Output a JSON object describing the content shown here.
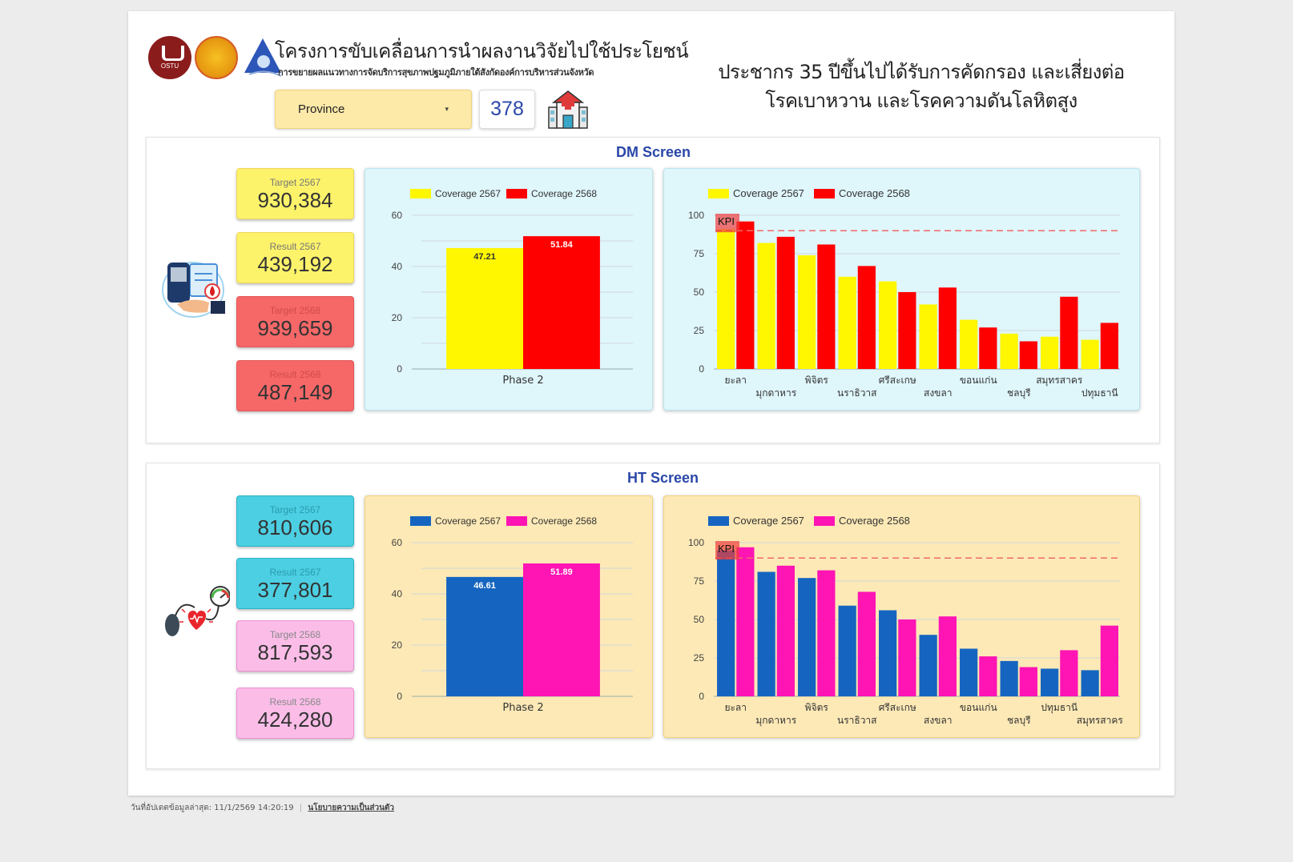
{
  "header": {
    "project_title": "โครงการขับเคลื่อนการนำผลงานวิจัยไปใช้ประโยชน์",
    "project_subtitle": "การขยายผลแนวทางการจัดบริการสุขภาพปฐมภูมิภายใต้สังกัดองค์การบริหารส่วนจังหวัด",
    "main_title_line1": "ประชากร 35 ปีขึ้นไปได้รับการคัดกรอง และเสี่ยงต่อ",
    "main_title_line2": "โรคเบาหวาน และโรคความดันโลหิตสูง",
    "province_select": {
      "value": "Province",
      "caret": "▾"
    },
    "facility_count": "378",
    "logos": [
      "ostu-logo",
      "seal-logo",
      "triangle-logo"
    ],
    "hospital_icon": "hospital-icon"
  },
  "sections": {
    "dm": {
      "title": "DM Screen",
      "icon": "glucose-meter-icon",
      "kpis": [
        {
          "label": "Target 2567",
          "value": "930,384",
          "style": "yellow"
        },
        {
          "label": "Result 2567",
          "value": "439,192",
          "style": "yellow"
        },
        {
          "label": "Target 2568",
          "value": "939,659",
          "style": "red"
        },
        {
          "label": "Result 2568",
          "value": "487,149",
          "style": "red"
        }
      ]
    },
    "ht": {
      "title": "HT Screen",
      "icon": "blood-pressure-icon",
      "kpis": [
        {
          "label": "Target 2567",
          "value": "810,606",
          "style": "cyan"
        },
        {
          "label": "Result 2567",
          "value": "377,801",
          "style": "cyan"
        },
        {
          "label": "Target 2568",
          "value": "817,593",
          "style": "pink"
        },
        {
          "label": "Result 2568",
          "value": "424,280",
          "style": "pink"
        }
      ]
    }
  },
  "footer": {
    "updated_text": "วันที่อัปเดตข้อมูลล่าสุด: 11/1/2569 14:20:19",
    "separator": "|",
    "privacy_link": "นโยบายความเป็นส่วนตัว"
  },
  "chart_data": [
    {
      "id": "dm-phase",
      "type": "bar",
      "title": "",
      "categories": [
        "Phase 2"
      ],
      "series": [
        {
          "name": "Coverage 2567",
          "values": [
            47.21
          ],
          "color": "#fff700"
        },
        {
          "name": "Coverage 2568",
          "values": [
            51.84
          ],
          "color": "#ff0000"
        }
      ],
      "data_labels": [
        "47.21",
        "51.84"
      ],
      "ylim": [
        0,
        60
      ],
      "yticks": [
        0,
        20,
        40,
        60
      ],
      "grid": true,
      "legend_position": "top"
    },
    {
      "id": "dm-province",
      "type": "bar",
      "title": "",
      "categories": [
        "ยะลา",
        "มุกดาหาร",
        "พิจิตร",
        "นราธิวาส",
        "ศรีสะเกษ",
        "สงขลา",
        "ขอนแก่น",
        "ชลบุรี",
        "สมุทรสาคร",
        "ปทุมธานี"
      ],
      "series": [
        {
          "name": "Coverage 2567",
          "values": [
            91,
            82,
            74,
            60,
            57,
            42,
            32,
            23,
            21,
            19
          ],
          "color": "#fff700"
        },
        {
          "name": "Coverage 2568",
          "values": [
            96,
            86,
            81,
            67,
            50,
            53,
            27,
            18,
            47,
            30
          ],
          "color": "#ff0000"
        }
      ],
      "kpi_line": {
        "label": "KPI",
        "value": 90
      },
      "ylim": [
        0,
        100
      ],
      "yticks": [
        0,
        25,
        50,
        75,
        100
      ],
      "grid": true,
      "legend_position": "top"
    },
    {
      "id": "ht-phase",
      "type": "bar",
      "title": "",
      "categories": [
        "Phase 2"
      ],
      "series": [
        {
          "name": "Coverage 2567",
          "values": [
            46.61
          ],
          "color": "#1565c0"
        },
        {
          "name": "Coverage 2568",
          "values": [
            51.89
          ],
          "color": "#ff14b4"
        }
      ],
      "data_labels": [
        "46.61",
        "51.89"
      ],
      "ylim": [
        0,
        60
      ],
      "yticks": [
        0,
        20,
        40,
        60
      ],
      "grid": true,
      "legend_position": "top"
    },
    {
      "id": "ht-province",
      "type": "bar",
      "title": "",
      "categories": [
        "ยะลา",
        "มุกดาหาร",
        "พิจิตร",
        "นราธิวาส",
        "ศรีสะเกษ",
        "สงขลา",
        "ขอนแก่น",
        "ชลบุรี",
        "ปทุมธานี",
        "สมุทรสาคร"
      ],
      "series": [
        {
          "name": "Coverage 2567",
          "values": [
            95,
            81,
            77,
            59,
            56,
            40,
            31,
            23,
            18,
            17
          ],
          "color": "#1565c0"
        },
        {
          "name": "Coverage 2568",
          "values": [
            97,
            85,
            82,
            68,
            50,
            52,
            26,
            19,
            30,
            46
          ],
          "color": "#ff14b4"
        }
      ],
      "kpi_line": {
        "label": "KPI",
        "value": 90
      },
      "ylim": [
        0,
        100
      ],
      "yticks": [
        0,
        25,
        50,
        75,
        100
      ],
      "grid": true,
      "legend_position": "top"
    }
  ]
}
